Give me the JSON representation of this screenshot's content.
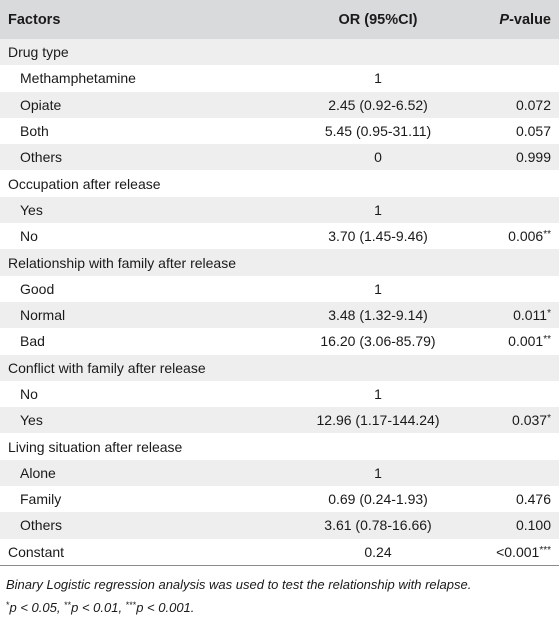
{
  "header": {
    "factors": "Factors",
    "or": "OR (95%CI)",
    "p_prefix": "P",
    "p_suffix": "-value"
  },
  "rows": [
    {
      "label": "Drug type",
      "or": "",
      "p": "",
      "stars": "",
      "sub": false,
      "shaded": true
    },
    {
      "label": "Methamphetamine",
      "or": "1",
      "p": "",
      "stars": "",
      "sub": true,
      "shaded": false
    },
    {
      "label": "Opiate",
      "or": "2.45 (0.92-6.52)",
      "p": "0.072",
      "stars": "",
      "sub": true,
      "shaded": true
    },
    {
      "label": "Both",
      "or": "5.45 (0.95-31.11)",
      "p": "0.057",
      "stars": "",
      "sub": true,
      "shaded": false
    },
    {
      "label": "Others",
      "or": "0",
      "p": "0.999",
      "stars": "",
      "sub": true,
      "shaded": true
    },
    {
      "label": "Occupation after release",
      "or": "",
      "p": "",
      "stars": "",
      "sub": false,
      "shaded": false
    },
    {
      "label": "Yes",
      "or": "1",
      "p": "",
      "stars": "",
      "sub": true,
      "shaded": true
    },
    {
      "label": "No",
      "or": "3.70 (1.45-9.46)",
      "p": "0.006",
      "stars": "**",
      "sub": true,
      "shaded": false
    },
    {
      "label": "Relationship with family after release",
      "or": "",
      "p": "",
      "stars": "",
      "sub": false,
      "shaded": true
    },
    {
      "label": "Good",
      "or": "1",
      "p": "",
      "stars": "",
      "sub": true,
      "shaded": false
    },
    {
      "label": "Normal",
      "or": "3.48 (1.32-9.14)",
      "p": "0.011",
      "stars": "*",
      "sub": true,
      "shaded": true
    },
    {
      "label": "Bad",
      "or": "16.20 (3.06-85.79)",
      "p": "0.001",
      "stars": "**",
      "sub": true,
      "shaded": false
    },
    {
      "label": "Conflict with family after release",
      "or": "",
      "p": "",
      "stars": "",
      "sub": false,
      "shaded": true
    },
    {
      "label": "No",
      "or": "1",
      "p": "",
      "stars": "",
      "sub": true,
      "shaded": false
    },
    {
      "label": "Yes",
      "or": "12.96 (1.17-144.24)",
      "p": "0.037",
      "stars": "*",
      "sub": true,
      "shaded": true
    },
    {
      "label": "Living situation after release",
      "or": "",
      "p": "",
      "stars": "",
      "sub": false,
      "shaded": false
    },
    {
      "label": "Alone",
      "or": "1",
      "p": "",
      "stars": "",
      "sub": true,
      "shaded": true
    },
    {
      "label": "Family",
      "or": "0.69 (0.24-1.93)",
      "p": "0.476",
      "stars": "",
      "sub": true,
      "shaded": false
    },
    {
      "label": "Others",
      "or": "3.61 (0.78-16.66)",
      "p": "0.100",
      "stars": "",
      "sub": true,
      "shaded": true
    },
    {
      "label": "Constant",
      "or": "0.24",
      "p": "<0.001",
      "stars": "***",
      "sub": false,
      "shaded": false
    }
  ],
  "footnote": {
    "line1": "Binary Logistic regression analysis was used to test the relationship with relapse.",
    "line2_p1": "p < 0.05, ",
    "line2_p2": "p < 0.01, ",
    "line2_p3": "p < 0.001.",
    "ast1": "*",
    "ast2": "**",
    "ast3": "***"
  }
}
